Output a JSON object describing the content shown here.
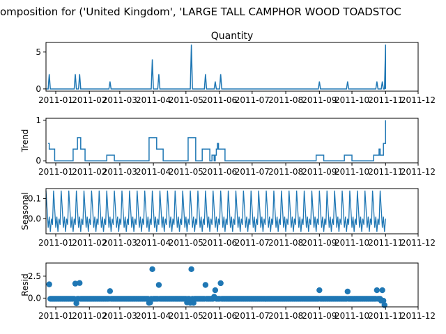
{
  "suptitle": "omposition for ('United Kingdom', 'LARGE  TALL CAMPHOR WOOD TOADSTOC",
  "accent_color": "#1f77b4",
  "x_tick_labels": [
    "2011-01",
    "2011-02",
    "2011-03",
    "2011-04",
    "2011-05",
    "2011-06",
    "2011-07",
    "2011-08",
    "2011-09",
    "2011-10",
    "2011-11",
    "2011-12"
  ],
  "chart_data": [
    {
      "type": "line",
      "title": "Quantity",
      "ylabel": "",
      "y_ticks": [
        "0",
        "5"
      ],
      "ylim": [
        -0.3,
        6.3
      ],
      "x_range_days": [
        0,
        343
      ],
      "baseline": 0,
      "spikes": [
        [
          3,
          2
        ],
        [
          27,
          2
        ],
        [
          31,
          2
        ],
        [
          59,
          1
        ],
        [
          98,
          4
        ],
        [
          104,
          2
        ],
        [
          134,
          6
        ],
        [
          147,
          2
        ],
        [
          156,
          1
        ],
        [
          161,
          2
        ],
        [
          252,
          1
        ],
        [
          278,
          1
        ],
        [
          305,
          1
        ],
        [
          310,
          1
        ],
        [
          313,
          6
        ]
      ]
    },
    {
      "type": "line",
      "title": "",
      "ylabel": "Trend",
      "y_ticks": [
        "0",
        "1"
      ],
      "ylim": [
        -0.05,
        1.05
      ],
      "points": [
        [
          2,
          0.43
        ],
        [
          3,
          0.29
        ],
        [
          6,
          0.29
        ],
        [
          8,
          0
        ],
        [
          24,
          0
        ],
        [
          25,
          0.29
        ],
        [
          28,
          0.29
        ],
        [
          29,
          0.57
        ],
        [
          31,
          0.57
        ],
        [
          32,
          0.29
        ],
        [
          35,
          0.29
        ],
        [
          36,
          0
        ],
        [
          55,
          0
        ],
        [
          56,
          0.14
        ],
        [
          62,
          0.14
        ],
        [
          63,
          0
        ],
        [
          94,
          0
        ],
        [
          95,
          0.57
        ],
        [
          101,
          0.57
        ],
        [
          102,
          0.29
        ],
        [
          107,
          0.29
        ],
        [
          108,
          0
        ],
        [
          130,
          0
        ],
        [
          131,
          0.57
        ],
        [
          137,
          0.57
        ],
        [
          138,
          0
        ],
        [
          143,
          0
        ],
        [
          144,
          0.29
        ],
        [
          150,
          0.29
        ],
        [
          151,
          0
        ],
        [
          152,
          0
        ],
        [
          153,
          0.14
        ],
        [
          155,
          0
        ],
        [
          156,
          0.14
        ],
        [
          157,
          0.29
        ],
        [
          158,
          0.43
        ],
        [
          159,
          0.29
        ],
        [
          164,
          0.29
        ],
        [
          165,
          0
        ],
        [
          248,
          0
        ],
        [
          249,
          0.14
        ],
        [
          255,
          0.14
        ],
        [
          256,
          0
        ],
        [
          274,
          0
        ],
        [
          275,
          0.14
        ],
        [
          281,
          0.14
        ],
        [
          282,
          0
        ],
        [
          301,
          0
        ],
        [
          302,
          0.14
        ],
        [
          306,
          0.14
        ],
        [
          307,
          0.29
        ],
        [
          308,
          0.14
        ],
        [
          311,
          0.43
        ],
        [
          313,
          1
        ]
      ]
    },
    {
      "type": "line",
      "title": "",
      "ylabel": "Seasonal",
      "y_ticks": [
        "0.0",
        "0.1"
      ],
      "ylim": [
        -0.075,
        0.15
      ],
      "period": 7,
      "x_range_days": [
        0,
        313
      ],
      "pattern": [
        0.14,
        0.05,
        -0.045,
        0.01,
        -0.065,
        0.0,
        -0.03
      ]
    },
    {
      "type": "scatter",
      "title": "",
      "ylabel": "Resid",
      "y_ticks": [
        "0.0",
        "2.5"
      ],
      "ylim": [
        -1.0,
        4.0
      ],
      "x_range_days": [
        3,
        312
      ],
      "baseline": -0.08,
      "outliers": [
        [
          3,
          1.57
        ],
        [
          27,
          1.65
        ],
        [
          28,
          -0.6
        ],
        [
          31,
          1.72
        ],
        [
          59,
          0.8
        ],
        [
          95,
          -0.55
        ],
        [
          96,
          -0.5
        ],
        [
          98,
          3.3
        ],
        [
          104,
          1.5
        ],
        [
          130,
          -0.5
        ],
        [
          133,
          -0.55
        ],
        [
          134,
          3.3
        ],
        [
          136,
          -0.55
        ],
        [
          147,
          1.5
        ],
        [
          155,
          0.15
        ],
        [
          156,
          0.9
        ],
        [
          161,
          1.7
        ],
        [
          252,
          0.9
        ],
        [
          278,
          0.75
        ],
        [
          305,
          0.9
        ],
        [
          309,
          -0.3
        ],
        [
          310,
          0.9
        ],
        [
          311,
          -0.3
        ],
        [
          312,
          -0.8
        ]
      ]
    }
  ]
}
